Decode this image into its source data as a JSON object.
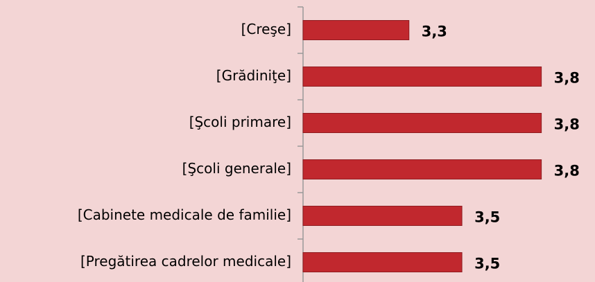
{
  "chart_data": {
    "type": "bar",
    "orientation": "horizontal",
    "categories": [
      "[Creşe]",
      "[Grădiniţe]",
      "[Şcoli primare]",
      "[Şcoli generale]",
      "[Cabinete medicale de familie]",
      "[Pregătirea cadrelor medicale]"
    ],
    "values": [
      3.3,
      3.8,
      3.8,
      3.8,
      3.5,
      3.5
    ],
    "value_labels": [
      "3,3",
      "3,8",
      "3,8",
      "3,8",
      "3,5",
      "3,5"
    ],
    "color": "#c1282e",
    "xlim": [
      2.9,
      4.0
    ]
  }
}
